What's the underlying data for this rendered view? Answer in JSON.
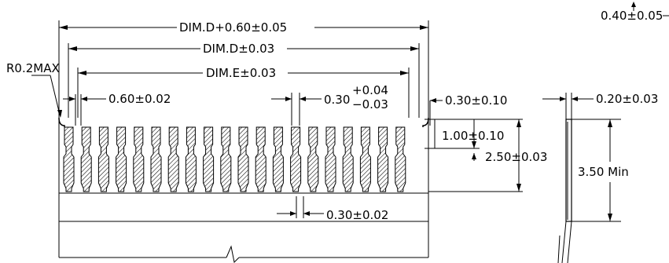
{
  "labels": {
    "overall": "DIM.D+0.60±0.05",
    "dim_d": "DIM.D±0.03",
    "dim_e": "DIM.E±0.03",
    "radius": "R0.2MAX",
    "pitch": "0.60±0.02",
    "slot_base": "0.30",
    "slot_upper_tol": "+0.04",
    "slot_lower_tol": "−0.03",
    "edge_margin": "0.30±0.10",
    "pad_height": "1.00±0.10",
    "finger_length": "2.50±0.03",
    "finger_width": "0.30±0.02",
    "thickness": "0.20±0.03",
    "min_length": "3.50  Min",
    "top_right": "0.40±0.05"
  },
  "diagram": {
    "finger_count": 20,
    "line_color": "#000000",
    "hatch_color": "#000000"
  }
}
